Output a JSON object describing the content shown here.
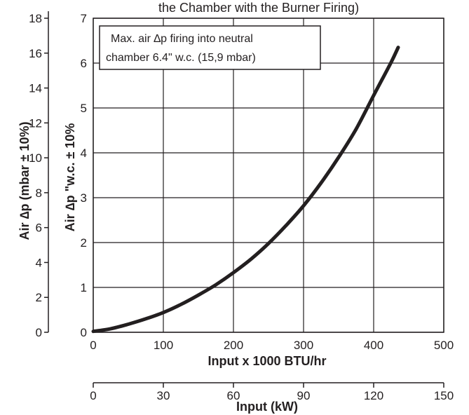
{
  "chart_data": {
    "type": "line",
    "title": "the Chamber with the Burner Firing)",
    "annotation": {
      "line1": "Max. air ∆p firing into neutral",
      "line2": "chamber 6.4\" w.c. (15,9 mbar)"
    },
    "xlabel": "Input x 1000 BTU/hr",
    "xlabel_secondary": "Input (kW)",
    "ylabel": "Air ∆p \"w.c. ± 10%",
    "ylabel_secondary": "Air ∆p  (mbar ± 10%)",
    "xlim": [
      0,
      500
    ],
    "ylim": [
      0,
      7
    ],
    "xlim_secondary": [
      0,
      150
    ],
    "ylim_secondary": [
      0,
      18
    ],
    "x_ticks": [
      "0",
      "100",
      "200",
      "300",
      "400",
      "500"
    ],
    "y_ticks": [
      "0",
      "1",
      "2",
      "3",
      "4",
      "5",
      "6",
      "7"
    ],
    "x_ticks_secondary": [
      "0",
      "30",
      "60",
      "90",
      "120",
      "150"
    ],
    "y_ticks_secondary": [
      "0",
      "2",
      "4",
      "6",
      "8",
      "10",
      "12",
      "14",
      "16",
      "18"
    ],
    "grid": true,
    "colors": {
      "line": "#231f20",
      "grid": "#231f20"
    },
    "series": [
      {
        "x": [
          0,
          25,
          50,
          75,
          100,
          125,
          150,
          175,
          200,
          225,
          250,
          275,
          300,
          325,
          350,
          375,
          400,
          425,
          435
        ],
        "values": [
          0.02,
          0.08,
          0.18,
          0.3,
          0.44,
          0.62,
          0.83,
          1.06,
          1.33,
          1.63,
          1.98,
          2.38,
          2.82,
          3.33,
          3.9,
          4.53,
          5.28,
          6.02,
          6.35
        ]
      }
    ]
  }
}
